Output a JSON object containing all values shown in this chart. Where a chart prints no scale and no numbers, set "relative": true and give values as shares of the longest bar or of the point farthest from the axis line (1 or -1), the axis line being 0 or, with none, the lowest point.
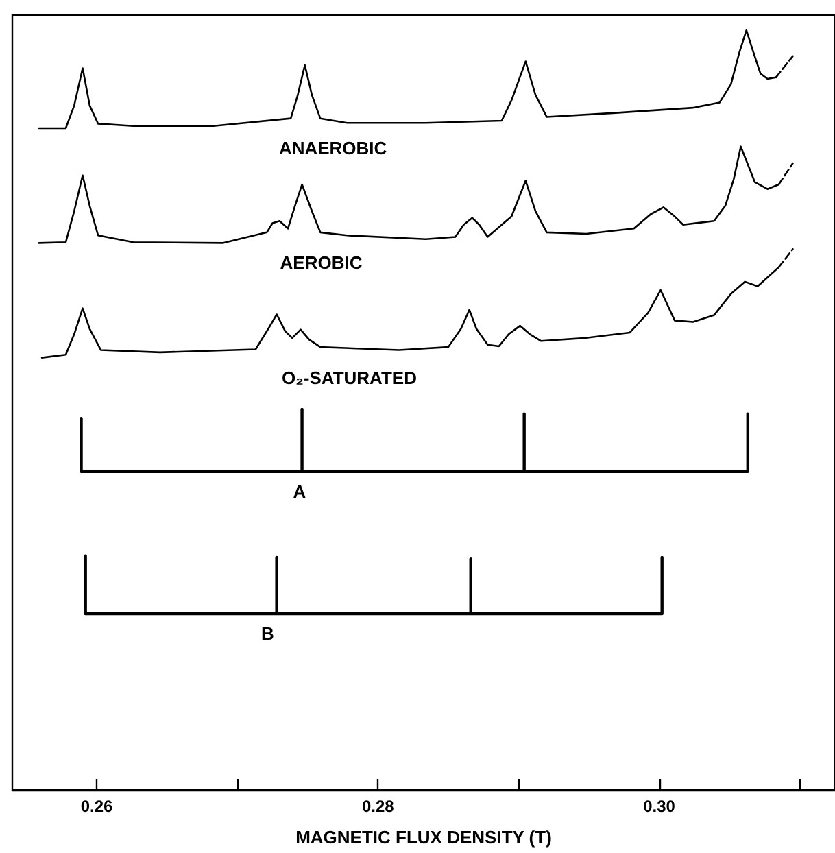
{
  "chart_data": {
    "type": "line",
    "relative": true,
    "xlabel": "MAGNETIC FLUX DENSITY (T)",
    "xlim": [
      0.254,
      0.3125
    ],
    "xticks": [
      0.26,
      {
        "value": 0.27,
        "label": null
      },
      0.28,
      {
        "value": 0.29,
        "label": null
      },
      {
        "value": 0.3,
        "label": "0.30"
      },
      {
        "value": 0.31,
        "label": null
      }
    ],
    "tick_labels": "x",
    "legend": false,
    "grid": false,
    "marker": "none",
    "series": [
      {
        "name": "ANAEROBIC",
        "color": "#000000",
        "x": [
          0.2559,
          0.2578,
          0.2584,
          0.259,
          0.2595,
          0.2601,
          0.2626,
          0.2683,
          0.2738,
          0.2743,
          0.2748,
          0.2753,
          0.2759,
          0.2778,
          0.2834,
          0.2888,
          0.2895,
          0.2905,
          0.2912,
          0.292,
          0.2967,
          0.3024,
          0.3043,
          0.3051,
          0.3057,
          0.3062,
          0.3067,
          0.3072,
          0.3077,
          0.3083
        ],
        "values": [
          0.871,
          0.871,
          0.901,
          0.95,
          0.901,
          0.877,
          0.874,
          0.874,
          0.884,
          0.915,
          0.954,
          0.915,
          0.884,
          0.878,
          0.878,
          0.881,
          0.908,
          0.959,
          0.915,
          0.886,
          0.891,
          0.898,
          0.905,
          0.929,
          0.971,
          1,
          0.971,
          0.943,
          0.936,
          0.938
        ]
      },
      {
        "name": "AEROBIC",
        "color": "#000000",
        "x": [
          0.2559,
          0.2578,
          0.2584,
          0.259,
          0.2595,
          0.2601,
          0.2626,
          0.269,
          0.2721,
          0.2725,
          0.273,
          0.2736,
          0.2741,
          0.2746,
          0.2753,
          0.2759,
          0.2778,
          0.2834,
          0.2855,
          0.2861,
          0.2867,
          0.2872,
          0.2878,
          0.2895,
          0.2905,
          0.2912,
          0.292,
          0.2948,
          0.2982,
          0.2994,
          0.3003,
          0.3011,
          0.3017,
          0.3039,
          0.3047,
          0.3053,
          0.3058,
          0.3068,
          0.3077,
          0.3085
        ],
        "values": [
          0.72,
          0.721,
          0.762,
          0.809,
          0.769,
          0.73,
          0.721,
          0.72,
          0.734,
          0.746,
          0.749,
          0.739,
          0.769,
          0.797,
          0.762,
          0.734,
          0.73,
          0.725,
          0.728,
          0.744,
          0.753,
          0.744,
          0.728,
          0.755,
          0.802,
          0.762,
          0.734,
          0.732,
          0.739,
          0.758,
          0.767,
          0.755,
          0.744,
          0.749,
          0.769,
          0.804,
          0.847,
          0.8,
          0.791,
          0.797
        ]
      },
      {
        "name": "O₂-SATURATED",
        "color": "#000000",
        "x": [
          0.2561,
          0.2578,
          0.2584,
          0.259,
          0.2595,
          0.2603,
          0.2645,
          0.2713,
          0.2722,
          0.2728,
          0.2734,
          0.2739,
          0.2745,
          0.2751,
          0.2759,
          0.2815,
          0.285,
          0.2859,
          0.2865,
          0.287,
          0.2878,
          0.2886,
          0.2893,
          0.2901,
          0.2908,
          0.2916,
          0.2948,
          0.2979,
          0.2992,
          0.3001,
          0.3011,
          0.3024,
          0.3039,
          0.3051,
          0.3061,
          0.307,
          0.3085
        ],
        "values": [
          0.569,
          0.573,
          0.6,
          0.634,
          0.607,
          0.579,
          0.576,
          0.58,
          0.607,
          0.626,
          0.604,
          0.595,
          0.606,
          0.593,
          0.583,
          0.579,
          0.583,
          0.607,
          0.632,
          0.607,
          0.586,
          0.584,
          0.6,
          0.611,
          0.6,
          0.591,
          0.595,
          0.602,
          0.628,
          0.658,
          0.618,
          0.616,
          0.625,
          0.653,
          0.669,
          0.663,
          0.688
        ]
      },
      {
        "color": "#000000",
        "line_style": "dashed",
        "x": [
          0.3083,
          0.3095
        ],
        "values": [
          0.938,
          0.966
        ]
      },
      {
        "color": "#000000",
        "line_style": "dashed",
        "x": [
          0.3085,
          0.3095
        ],
        "values": [
          0.797,
          0.825
        ]
      },
      {
        "color": "#000000",
        "line_style": "dashed",
        "x": [
          0.3085,
          0.3095
        ],
        "values": [
          0.688,
          0.712
        ]
      },
      {
        "name": "A",
        "color": "#000000",
        "x": [
          0.2589,
          0.2589,
          0.2746,
          0.2746,
          0.2746,
          0.2904,
          0.2904,
          0.2904,
          0.3063,
          0.3063
        ],
        "values": [
          0.489,
          0.419,
          0.419,
          0.501,
          0.419,
          0.419,
          0.495,
          0.419,
          0.419,
          0.495
        ]
      },
      {
        "name": "B",
        "color": "#000000",
        "x": [
          0.2592,
          0.2592,
          0.2728,
          0.2728,
          0.2728,
          0.2866,
          0.2866,
          0.2866,
          0.3002,
          0.3002
        ],
        "values": [
          0.308,
          0.232,
          0.232,
          0.306,
          0.232,
          0.232,
          0.304,
          0.232,
          0.232,
          0.306
        ]
      }
    ]
  }
}
